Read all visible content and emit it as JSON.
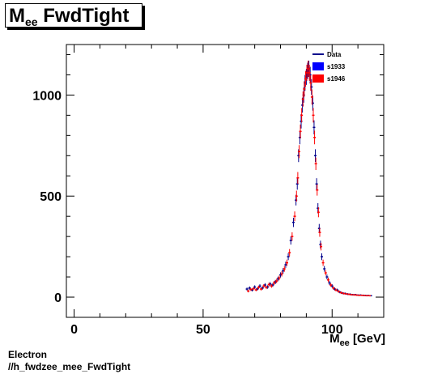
{
  "title": {
    "main": "M",
    "sub": "ee",
    "rest": " FwdTight"
  },
  "footer": {
    "line1": "Electron",
    "line2": "//h_fwdzee_mee_FwdTight"
  },
  "chart_data": {
    "type": "scatter",
    "title": "Mee FwdTight",
    "xlabel": {
      "main": "M",
      "sub": "ee",
      "rest": " [GeV]"
    },
    "ylabel": "",
    "xlim": [
      -3,
      120
    ],
    "ylim": [
      -100,
      1250
    ],
    "xticks": [
      0,
      50,
      100
    ],
    "yticks": [
      0,
      500,
      1000
    ],
    "legend_position": "top-right",
    "legend": [
      {
        "label": "Data",
        "kind": "line",
        "color": "#00008b"
      },
      {
        "label": "s1933",
        "kind": "box",
        "color": "#0000ff"
      },
      {
        "label": "s1946",
        "kind": "box",
        "color": "#ff0000"
      }
    ],
    "series": [
      {
        "name": "s1933",
        "color": "#00008b",
        "x": [
          67,
          68,
          69,
          70,
          71,
          72,
          73,
          74,
          75,
          76,
          77,
          78,
          79,
          80,
          81,
          82,
          83,
          84,
          85,
          86,
          86.5,
          87,
          87.5,
          88,
          88.5,
          89,
          89.5,
          90,
          90.5,
          91,
          91.5,
          92,
          92.5,
          93,
          93.5,
          94,
          94.5,
          95,
          95.5,
          96,
          97,
          98,
          99,
          100,
          101,
          102,
          103,
          104,
          105,
          106,
          107,
          108,
          109,
          110,
          111,
          112,
          113,
          114,
          115
        ],
        "y": [
          40,
          45,
          35,
          50,
          40,
          55,
          45,
          60,
          50,
          65,
          60,
          75,
          90,
          110,
          130,
          160,
          200,
          280,
          370,
          480,
          560,
          700,
          790,
          870,
          950,
          1000,
          1060,
          1090,
          1120,
          1130,
          1100,
          1040,
          960,
          840,
          700,
          560,
          440,
          340,
          260,
          200,
          140,
          100,
          70,
          55,
          40,
          35,
          25,
          20,
          18,
          15,
          14,
          12,
          12,
          10,
          10,
          9,
          8,
          8,
          7
        ]
      },
      {
        "name": "s1946",
        "color": "#ff0000",
        "x": [
          67.5,
          68.5,
          69.5,
          70.5,
          71.5,
          72.5,
          73.5,
          74.5,
          75.5,
          76.5,
          77.5,
          78.5,
          79.5,
          80.5,
          81.5,
          82.5,
          83.5,
          84.5,
          85.5,
          86.2,
          86.7,
          87.2,
          87.7,
          88.2,
          88.7,
          89.2,
          89.7,
          90.2,
          90.7,
          91.2,
          91.7,
          92.2,
          92.7,
          93.2,
          93.7,
          94.2,
          94.7,
          95.2,
          95.7,
          96.5,
          97.5,
          98.5,
          99.5,
          100.5,
          101.5,
          102.5,
          103.5,
          104.5,
          105.5,
          106.5,
          107.5,
          108.5,
          109.5,
          110.5,
          111.5,
          112.5,
          113.5,
          114.5
        ],
        "y": [
          30,
          38,
          42,
          36,
          48,
          40,
          55,
          48,
          62,
          55,
          70,
          80,
          95,
          115,
          140,
          170,
          220,
          300,
          400,
          500,
          590,
          720,
          820,
          900,
          980,
          1030,
          1080,
          1110,
          1130,
          1110,
          1060,
          990,
          900,
          790,
          660,
          530,
          420,
          320,
          250,
          170,
          120,
          85,
          60,
          45,
          35,
          28,
          22,
          18,
          16,
          14,
          12,
          11,
          10,
          9,
          9,
          8,
          7,
          7
        ]
      }
    ]
  }
}
